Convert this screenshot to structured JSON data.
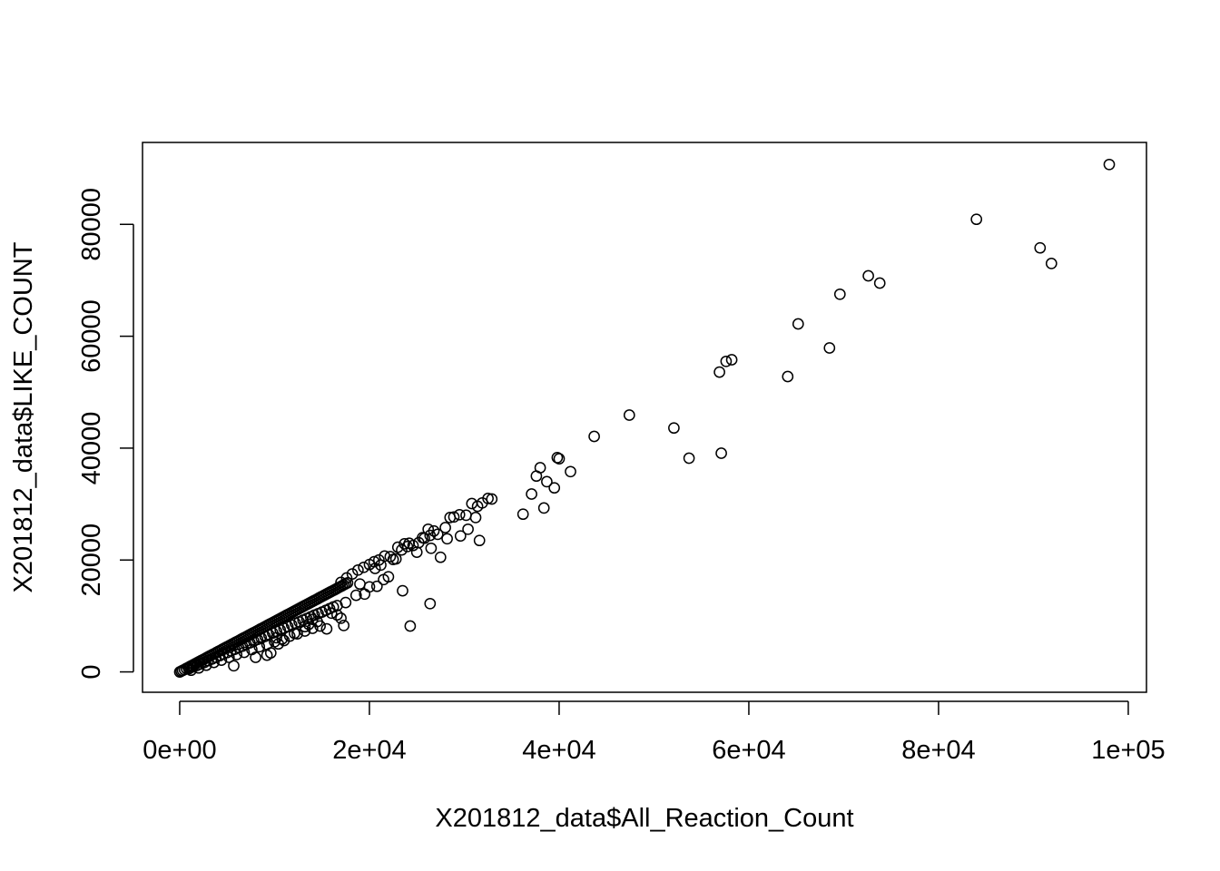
{
  "chart_data": {
    "type": "scatter",
    "title": "",
    "xlabel": "X201812_data$All_Reaction_Count",
    "ylabel": "X201812_data$LIKE_COUNT",
    "xlim": [
      -3920,
      101920
    ],
    "ylim": [
      -3640,
      94640
    ],
    "x_ticks": [
      0,
      20000,
      40000,
      60000,
      80000,
      100000
    ],
    "x_tick_labels": [
      "0e+00",
      "2e+04",
      "4e+04",
      "6e+04",
      "8e+04",
      "1e+05"
    ],
    "y_ticks": [
      0,
      20000,
      40000,
      60000,
      80000
    ],
    "y_tick_labels": [
      "0",
      "20000",
      "40000",
      "60000",
      "80000"
    ],
    "grid": false,
    "marker": "open-circle",
    "points": [
      [
        0,
        0
      ],
      [
        150,
        120
      ],
      [
        300,
        260
      ],
      [
        500,
        420
      ],
      [
        700,
        620
      ],
      [
        900,
        780
      ],
      [
        1100,
        990
      ],
      [
        1300,
        1150
      ],
      [
        1500,
        1330
      ],
      [
        1700,
        1520
      ],
      [
        1900,
        1700
      ],
      [
        2100,
        1880
      ],
      [
        2300,
        2050
      ],
      [
        2500,
        2230
      ],
      [
        2700,
        2410
      ],
      [
        2900,
        2600
      ],
      [
        3100,
        2780
      ],
      [
        3300,
        2960
      ],
      [
        3500,
        3140
      ],
      [
        3700,
        3300
      ],
      [
        3900,
        3500
      ],
      [
        4100,
        3680
      ],
      [
        4300,
        3860
      ],
      [
        4500,
        4040
      ],
      [
        4700,
        4220
      ],
      [
        4900,
        4400
      ],
      [
        5100,
        4580
      ],
      [
        5300,
        4760
      ],
      [
        5500,
        4940
      ],
      [
        5700,
        5120
      ],
      [
        5900,
        5300
      ],
      [
        6100,
        5480
      ],
      [
        6300,
        5660
      ],
      [
        6500,
        5840
      ],
      [
        6700,
        6020
      ],
      [
        6900,
        6200
      ],
      [
        7100,
        6380
      ],
      [
        7300,
        6560
      ],
      [
        7500,
        6740
      ],
      [
        7700,
        6920
      ],
      [
        7900,
        7100
      ],
      [
        8100,
        7280
      ],
      [
        8300,
        7460
      ],
      [
        8500,
        7640
      ],
      [
        8700,
        7820
      ],
      [
        8900,
        8000
      ],
      [
        9100,
        8180
      ],
      [
        9300,
        8360
      ],
      [
        9500,
        8540
      ],
      [
        9700,
        8720
      ],
      [
        9900,
        8900
      ],
      [
        10100,
        9080
      ],
      [
        10300,
        9260
      ],
      [
        10500,
        9440
      ],
      [
        10700,
        9620
      ],
      [
        10900,
        9800
      ],
      [
        11100,
        9980
      ],
      [
        11300,
        10160
      ],
      [
        11500,
        10340
      ],
      [
        11700,
        10520
      ],
      [
        11900,
        10700
      ],
      [
        12100,
        10880
      ],
      [
        12300,
        11060
      ],
      [
        12500,
        11240
      ],
      [
        12700,
        11420
      ],
      [
        12900,
        11600
      ],
      [
        13100,
        11780
      ],
      [
        13300,
        11960
      ],
      [
        13500,
        12140
      ],
      [
        13700,
        12320
      ],
      [
        13900,
        12500
      ],
      [
        14100,
        12680
      ],
      [
        14300,
        12860
      ],
      [
        14500,
        13040
      ],
      [
        14700,
        13220
      ],
      [
        14900,
        13400
      ],
      [
        15100,
        13580
      ],
      [
        15300,
        13760
      ],
      [
        15500,
        13940
      ],
      [
        15700,
        14120
      ],
      [
        15900,
        14300
      ],
      [
        16100,
        14480
      ],
      [
        16300,
        14660
      ],
      [
        16500,
        14840
      ],
      [
        16700,
        15020
      ],
      [
        16900,
        15200
      ],
      [
        17100,
        15380
      ],
      [
        17300,
        15560
      ],
      [
        17500,
        15740
      ],
      [
        17700,
        15920
      ],
      [
        1000,
        600
      ],
      [
        1400,
        900
      ],
      [
        1800,
        1150
      ],
      [
        2200,
        1400
      ],
      [
        2600,
        1700
      ],
      [
        3000,
        2000
      ],
      [
        3400,
        2300
      ],
      [
        3800,
        2600
      ],
      [
        4200,
        2900
      ],
      [
        4600,
        3200
      ],
      [
        5000,
        3450
      ],
      [
        5400,
        3750
      ],
      [
        5800,
        4050
      ],
      [
        6200,
        4350
      ],
      [
        6600,
        4600
      ],
      [
        7000,
        4900
      ],
      [
        7400,
        5200
      ],
      [
        7800,
        5500
      ],
      [
        8200,
        5800
      ],
      [
        8600,
        6050
      ],
      [
        9000,
        6350
      ],
      [
        9400,
        6650
      ],
      [
        9800,
        6950
      ],
      [
        10200,
        7250
      ],
      [
        10600,
        7500
      ],
      [
        11000,
        7800
      ],
      [
        11400,
        8100
      ],
      [
        11800,
        8400
      ],
      [
        12200,
        8700
      ],
      [
        12600,
        8950
      ],
      [
        13000,
        9250
      ],
      [
        13400,
        9550
      ],
      [
        13800,
        9850
      ],
      [
        14200,
        10150
      ],
      [
        14600,
        10400
      ],
      [
        15000,
        10700
      ],
      [
        15400,
        11000
      ],
      [
        15800,
        11300
      ],
      [
        16200,
        11600
      ],
      [
        16600,
        11850
      ],
      [
        1200,
        300
      ],
      [
        2000,
        700
      ],
      [
        2800,
        1200
      ],
      [
        3600,
        1700
      ],
      [
        4400,
        2100
      ],
      [
        5200,
        2600
      ],
      [
        6000,
        3100
      ],
      [
        6800,
        3500
      ],
      [
        7600,
        4000
      ],
      [
        8400,
        4500
      ],
      [
        9200,
        4900
      ],
      [
        10000,
        5400
      ],
      [
        10800,
        5900
      ],
      [
        11600,
        6400
      ],
      [
        12400,
        6800
      ],
      [
        13200,
        7300
      ],
      [
        14000,
        7800
      ],
      [
        14800,
        8200
      ],
      [
        5700,
        1100
      ],
      [
        8000,
        2600
      ],
      [
        9200,
        3000
      ],
      [
        9600,
        3400
      ],
      [
        10400,
        5000
      ],
      [
        10200,
        6100
      ],
      [
        11000,
        5600
      ],
      [
        12100,
        6900
      ],
      [
        13200,
        8100
      ],
      [
        13600,
        8500
      ],
      [
        14000,
        9400
      ],
      [
        14500,
        9000
      ],
      [
        15500,
        7700
      ],
      [
        16000,
        10500
      ],
      [
        16600,
        10200
      ],
      [
        17000,
        9600
      ],
      [
        17300,
        8300
      ],
      [
        17500,
        12400
      ],
      [
        18600,
        13700
      ],
      [
        19000,
        15700
      ],
      [
        19500,
        13900
      ],
      [
        20000,
        15200
      ],
      [
        20800,
        15300
      ],
      [
        21500,
        16500
      ],
      [
        22000,
        17000
      ],
      [
        23500,
        14500
      ],
      [
        24300,
        8200
      ],
      [
        26400,
        12200
      ],
      [
        17000,
        16000
      ],
      [
        17600,
        16800
      ],
      [
        18200,
        17500
      ],
      [
        18800,
        18200
      ],
      [
        19400,
        18700
      ],
      [
        20000,
        19200
      ],
      [
        20500,
        19700
      ],
      [
        21000,
        20000
      ],
      [
        21600,
        20700
      ],
      [
        22200,
        20600
      ],
      [
        22800,
        20200
      ],
      [
        23400,
        21800
      ],
      [
        24000,
        22400
      ],
      [
        24600,
        22600
      ],
      [
        25200,
        23100
      ],
      [
        25800,
        23900
      ],
      [
        26400,
        24400
      ],
      [
        26800,
        25200
      ],
      [
        27200,
        24600
      ],
      [
        27500,
        20500
      ],
      [
        26500,
        22100
      ],
      [
        28000,
        25800
      ],
      [
        28500,
        27600
      ],
      [
        28900,
        27700
      ],
      [
        29500,
        28100
      ],
      [
        30200,
        28000
      ],
      [
        30800,
        30100
      ],
      [
        31400,
        29600
      ],
      [
        31900,
        30200
      ],
      [
        32500,
        31000
      ],
      [
        32900,
        30900
      ],
      [
        28200,
        23800
      ],
      [
        29600,
        24300
      ],
      [
        30400,
        25500
      ],
      [
        31600,
        23500
      ],
      [
        31200,
        27600
      ],
      [
        23000,
        22300
      ],
      [
        23700,
        22900
      ],
      [
        24200,
        23000
      ],
      [
        25000,
        21400
      ],
      [
        25600,
        24000
      ],
      [
        26200,
        25500
      ],
      [
        22500,
        20100
      ],
      [
        21200,
        19100
      ],
      [
        20600,
        18500
      ],
      [
        36200,
        28200
      ],
      [
        37100,
        31800
      ],
      [
        37600,
        35000
      ],
      [
        38000,
        36500
      ],
      [
        38400,
        29300
      ],
      [
        38700,
        34000
      ],
      [
        39500,
        32900
      ],
      [
        39800,
        38300
      ],
      [
        40000,
        38100
      ],
      [
        41200,
        35800
      ],
      [
        43700,
        42100
      ],
      [
        47400,
        45900
      ],
      [
        52100,
        43600
      ],
      [
        53700,
        38200
      ],
      [
        56900,
        53600
      ],
      [
        57100,
        39100
      ],
      [
        57600,
        55500
      ],
      [
        58200,
        55800
      ],
      [
        64100,
        52800
      ],
      [
        65200,
        62200
      ],
      [
        68500,
        57900
      ],
      [
        69600,
        67500
      ],
      [
        72600,
        70800
      ],
      [
        73800,
        69500
      ],
      [
        84000,
        80900
      ],
      [
        90700,
        75800
      ],
      [
        91900,
        73000
      ],
      [
        98000,
        90700
      ]
    ]
  }
}
